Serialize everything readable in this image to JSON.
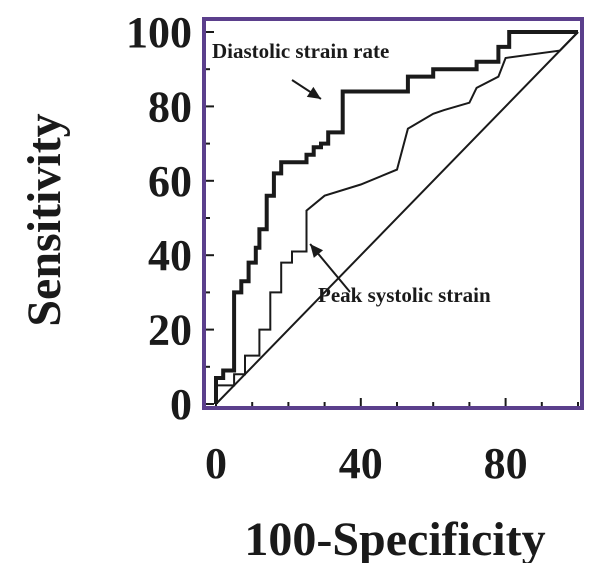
{
  "chart_data": {
    "type": "line",
    "xlabel": "100-Specificity",
    "ylabel": "Sensitivity",
    "xlim": [
      0,
      100
    ],
    "ylim": [
      0,
      100
    ],
    "x_ticks": [
      0,
      40,
      80
    ],
    "y_ticks": [
      0,
      20,
      40,
      60,
      80,
      100
    ],
    "grid": false,
    "colors": {
      "frame": "#5b3f8c",
      "series": "#1a1a1a",
      "diagonal": "#1a1a1a"
    },
    "series": [
      {
        "name": "Diastolic strain rate",
        "style": "thick",
        "points": [
          [
            0,
            0
          ],
          [
            0,
            7
          ],
          [
            2,
            7
          ],
          [
            2,
            9
          ],
          [
            5,
            9
          ],
          [
            5,
            30
          ],
          [
            7,
            30
          ],
          [
            7,
            33
          ],
          [
            9,
            33
          ],
          [
            9,
            38
          ],
          [
            11,
            38
          ],
          [
            11,
            42
          ],
          [
            12,
            42
          ],
          [
            12,
            47
          ],
          [
            14,
            47
          ],
          [
            14,
            56
          ],
          [
            16,
            56
          ],
          [
            16,
            62
          ],
          [
            18,
            62
          ],
          [
            18,
            65
          ],
          [
            25,
            65
          ],
          [
            25,
            67
          ],
          [
            27,
            67
          ],
          [
            27,
            69
          ],
          [
            29,
            69
          ],
          [
            29,
            70
          ],
          [
            31,
            70
          ],
          [
            31,
            73
          ],
          [
            35,
            73
          ],
          [
            35,
            84
          ],
          [
            53,
            84
          ],
          [
            53,
            88
          ],
          [
            60,
            88
          ],
          [
            60,
            90
          ],
          [
            72,
            90
          ],
          [
            72,
            92
          ],
          [
            78,
            92
          ],
          [
            78,
            96
          ],
          [
            81,
            96
          ],
          [
            81,
            100
          ],
          [
            100,
            100
          ]
        ]
      },
      {
        "name": "Peak systolic strain",
        "style": "thin",
        "points": [
          [
            0,
            0
          ],
          [
            0,
            5
          ],
          [
            5,
            5
          ],
          [
            5,
            8
          ],
          [
            8,
            8
          ],
          [
            8,
            13
          ],
          [
            12,
            13
          ],
          [
            12,
            20
          ],
          [
            15,
            20
          ],
          [
            15,
            30
          ],
          [
            18,
            30
          ],
          [
            18,
            38
          ],
          [
            21,
            38
          ],
          [
            21,
            41
          ],
          [
            25,
            41
          ],
          [
            25,
            52
          ],
          [
            30,
            56
          ],
          [
            40,
            59
          ],
          [
            50,
            63
          ],
          [
            53,
            74
          ],
          [
            60,
            78
          ],
          [
            63,
            79
          ],
          [
            70,
            81
          ],
          [
            72,
            85
          ],
          [
            78,
            88
          ],
          [
            80,
            93
          ],
          [
            95,
            95
          ],
          [
            100,
            100
          ]
        ]
      }
    ],
    "reference_line": [
      [
        0,
        0
      ],
      [
        100,
        100
      ]
    ],
    "annotations": [
      {
        "text": "Diastolic strain rate",
        "arrow_to": [
          29,
          82
        ]
      },
      {
        "text": "Peak systolic strain",
        "arrow_to": [
          26,
          43
        ]
      }
    ]
  }
}
